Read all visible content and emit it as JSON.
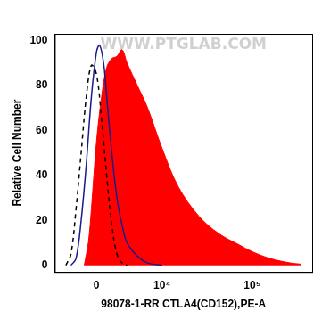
{
  "chart_data": {
    "type": "line",
    "x_label": "98078-1-RR CTLA4(CD152),PE-A",
    "y_label": "Relative Cell Number",
    "annotations": [
      "WWW.PTGLAB.COM"
    ],
    "xlim": [
      -5000,
      450000
    ],
    "xticks": [
      0,
      {
        "value": 10000,
        "label": "10⁴"
      },
      {
        "value": 100000,
        "label": "10⁵"
      }
    ],
    "ylim": [
      -3,
      103
    ],
    "yticks": [
      0,
      20,
      40,
      60,
      80,
      100
    ],
    "grid": false,
    "series": [
      {
        "type": "area",
        "color": "#ff0000",
        "line_style": "solid",
        "x": [
          -1250,
          -825,
          -513,
          0,
          513,
          1035,
          1577,
          2145,
          2745,
          3385,
          4865,
          6670,
          10000,
          15300,
          25800,
          43300,
          72400,
          100000,
          156000,
          261000,
          337000
        ],
        "values": [
          0,
          10,
          25,
          55,
          75,
          88,
          92,
          93,
          96,
          90,
          80,
          70,
          52,
          35,
          22,
          14,
          9,
          6,
          3,
          1,
          0.5
        ]
      },
      {
        "type": "line",
        "color": "#1a1a8c",
        "line_style": "solid",
        "x": [
          -2745,
          -2145,
          -1577,
          -1035,
          -513,
          0,
          308,
          718,
          1035,
          1577,
          2145,
          2745,
          3385,
          4865,
          6670,
          10000
        ],
        "values": [
          0,
          3,
          20,
          45,
          75,
          95,
          98,
          90,
          75,
          50,
          30,
          18,
          10,
          4,
          1,
          0
        ]
      },
      {
        "type": "line",
        "color": "#000000",
        "line_style": "dashed",
        "x": [
          -3385,
          -2745,
          -2145,
          -1577,
          -1035,
          -513,
          0,
          513,
          1035,
          1577,
          2145,
          2745,
          3385
        ],
        "values": [
          0,
          5,
          25,
          50,
          75,
          89,
          85,
          65,
          40,
          18,
          5,
          1,
          0
        ]
      }
    ]
  }
}
